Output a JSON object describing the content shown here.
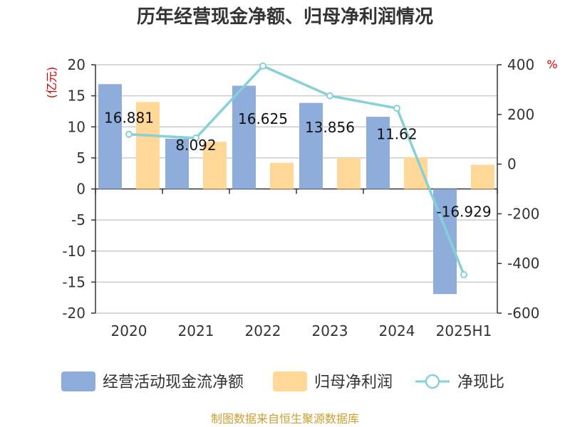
{
  "chart_data": {
    "type": "bar",
    "title": "历年经营现金净额、归母净利润情况",
    "categories": [
      "2020",
      "2021",
      "2022",
      "2023",
      "2024",
      "2025H1"
    ],
    "series": [
      {
        "name": "经营活动现金流净额",
        "type": "bar",
        "axis": "left",
        "color": "#8eaddb",
        "values": [
          16.881,
          8.092,
          16.625,
          13.856,
          11.62,
          -16.929
        ],
        "labels": [
          "16.881",
          "8.092",
          "16.625",
          "13.856",
          "11.62",
          "-16.929"
        ]
      },
      {
        "name": "归母净利润",
        "type": "bar",
        "axis": "left",
        "color": "#ffd796",
        "values": [
          14.0,
          7.6,
          4.2,
          5.0,
          5.1,
          3.9
        ]
      },
      {
        "name": "净现比",
        "type": "line",
        "axis": "right",
        "color": "#86d0d6",
        "values": [
          120,
          105,
          395,
          275,
          225,
          -445
        ]
      }
    ],
    "y_left": {
      "label": "(亿元)",
      "ylim": [
        -20,
        20
      ],
      "ticks": [
        "20",
        "15",
        "10",
        "5",
        "0",
        "-5",
        "-10",
        "-15",
        "-20"
      ]
    },
    "y_right": {
      "label": "%",
      "ylim": [
        -600,
        400
      ],
      "ticks": [
        "400",
        "200",
        "0",
        "-200",
        "-400",
        "-600"
      ]
    },
    "grid": true,
    "legend_position": "bottom",
    "source": "制图数据来自恒生聚源数据库",
    "colors": {
      "unit_label": "#cc0000",
      "source_text": "#c8a030",
      "axis_line": "#333333",
      "grid_line": "#cccccc"
    }
  }
}
